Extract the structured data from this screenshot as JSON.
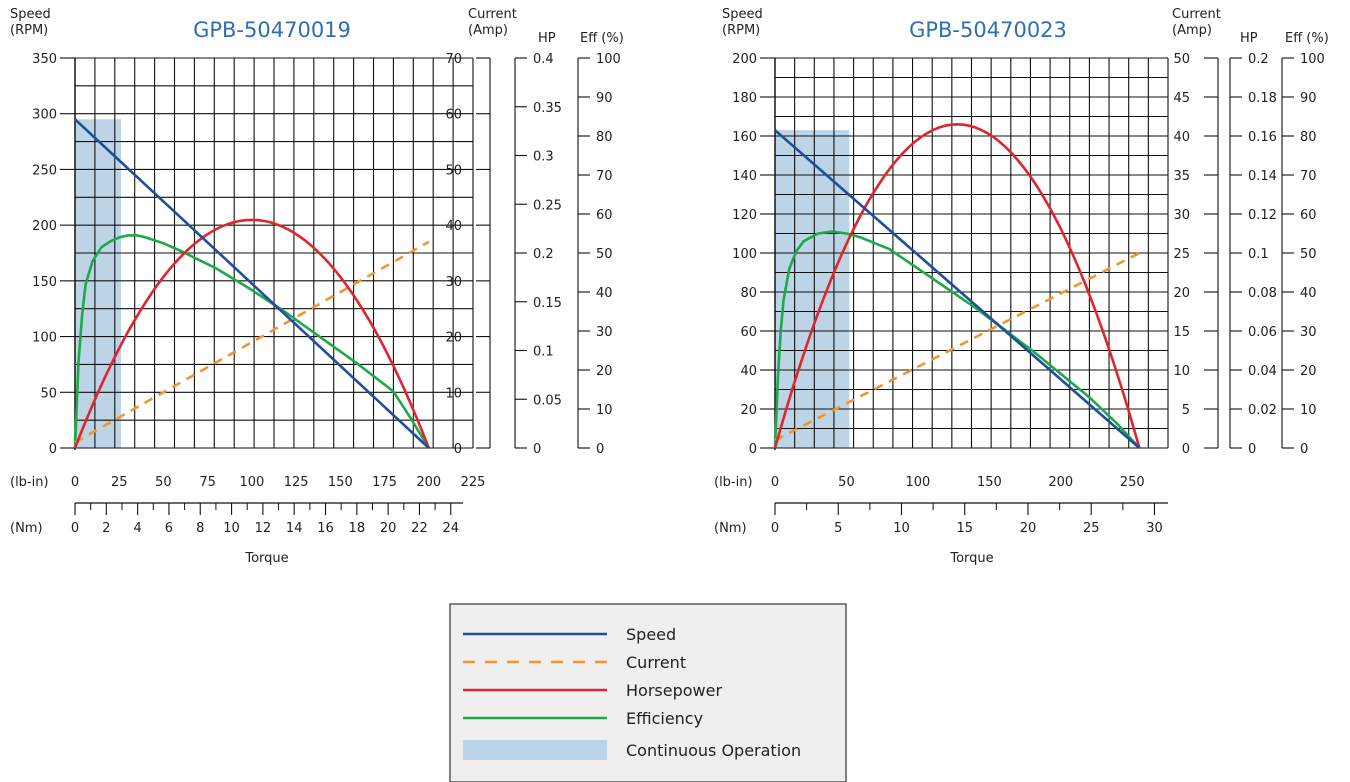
{
  "chart_data": [
    {
      "type": "line",
      "title": "GPB-50470019",
      "xlabel": "Torque",
      "x_units_primary": "(lb-in)",
      "x_units_secondary": "(Nm)",
      "y_axes": [
        {
          "label_line1": "Speed",
          "label_line2": "(RPM)",
          "range": [
            0,
            350
          ],
          "ticks": [
            "0",
            "50",
            "100",
            "150",
            "200",
            "250",
            "300",
            "350"
          ]
        },
        {
          "label_line1": "Current",
          "label_line2": "(Amp)",
          "range": [
            0,
            70
          ],
          "ticks": [
            "0",
            "10",
            "20",
            "30",
            "40",
            "50",
            "60",
            "70"
          ]
        },
        {
          "label_line1": "HP",
          "label_line2": "",
          "range": [
            0,
            0.4
          ],
          "ticks": [
            "0",
            "0.05",
            "0.1",
            "0.15",
            "0.2",
            "0.25",
            "0.3",
            "0.35",
            "0.4"
          ]
        },
        {
          "label_line1": "Eff (%)",
          "label_line2": "",
          "range": [
            0,
            100
          ],
          "ticks": [
            "0",
            "10",
            "20",
            "30",
            "40",
            "50",
            "60",
            "70",
            "80",
            "90",
            "100"
          ]
        }
      ],
      "x_lbin_ticks": [
        "0",
        "25",
        "50",
        "75",
        "100",
        "125",
        "150",
        "175",
        "200",
        "225"
      ],
      "x_lbin_range": [
        0,
        225
      ],
      "x_nm_ticks": [
        "0",
        "2",
        "4",
        "6",
        "8",
        "10",
        "12",
        "14",
        "16",
        "18",
        "20",
        "22",
        "24"
      ],
      "x_nm_max": 25.42,
      "continuous_operation_max_lbin": 26,
      "series": [
        {
          "name": "Speed",
          "x": [
            0,
            200
          ],
          "y": [
            295,
            0
          ]
        },
        {
          "name": "Current",
          "x": [
            0,
            200
          ],
          "y": [
            1,
            37
          ]
        },
        {
          "name": "Horsepower",
          "x": [
            0,
            25,
            50,
            75,
            100,
            125,
            150,
            175,
            200
          ],
          "y": [
            0,
            0.102,
            0.175,
            0.219,
            0.234,
            0.219,
            0.175,
            0.102,
            0
          ]
        },
        {
          "name": "Efficiency",
          "x": [
            0,
            2,
            4,
            6,
            10,
            15,
            20,
            25,
            30,
            35,
            40,
            50,
            60,
            80,
            100,
            120,
            140,
            160,
            180,
            190,
            200
          ],
          "y": [
            0,
            22,
            34,
            42,
            48,
            51.5,
            53,
            54,
            54.5,
            54.5,
            54,
            52.5,
            50.5,
            46,
            40.5,
            34.5,
            28,
            21.5,
            14.5,
            7.5,
            0
          ]
        }
      ]
    },
    {
      "type": "line",
      "title": "GPB-50470023",
      "xlabel": "Torque",
      "x_units_primary": "(lb-in)",
      "x_units_secondary": "(Nm)",
      "y_axes": [
        {
          "label_line1": "Speed",
          "label_line2": "(RPM)",
          "range": [
            0,
            200
          ],
          "ticks": [
            "0",
            "20",
            "40",
            "60",
            "80",
            "100",
            "120",
            "140",
            "160",
            "180",
            "200"
          ]
        },
        {
          "label_line1": "Current",
          "label_line2": "(Amp)",
          "range": [
            0,
            50
          ],
          "ticks": [
            "0",
            "5",
            "10",
            "15",
            "20",
            "25",
            "30",
            "35",
            "40",
            "45",
            "50"
          ]
        },
        {
          "label_line1": "HP",
          "label_line2": "",
          "range": [
            0,
            0.2
          ],
          "ticks": [
            "0",
            "0.02",
            "0.04",
            "0.06",
            "0.08",
            "0.1",
            "0.12",
            "0.14",
            "0.16",
            "0.18",
            "0.2"
          ]
        },
        {
          "label_line1": "Eff (%)",
          "label_line2": "",
          "range": [
            0,
            100
          ],
          "ticks": [
            "0",
            "10",
            "20",
            "30",
            "40",
            "50",
            "60",
            "70",
            "80",
            "90",
            "100"
          ]
        }
      ],
      "x_lbin_ticks": [
        "0",
        "50",
        "100",
        "150",
        "200",
        "250"
      ],
      "x_lbin_range": [
        0,
        275
      ],
      "x_nm_ticks": [
        "0",
        "5",
        "10",
        "15",
        "20",
        "25",
        "30"
      ],
      "x_nm_max": 31.07,
      "continuous_operation_max_lbin": 52,
      "series": [
        {
          "name": "Speed",
          "x": [
            0,
            255
          ],
          "y": [
            163,
            0
          ]
        },
        {
          "name": "Current",
          "x": [
            0,
            255
          ],
          "y": [
            1,
            25
          ]
        },
        {
          "name": "Horsepower",
          "x": [
            0,
            32,
            64,
            96,
            128,
            160,
            192,
            224,
            255
          ],
          "y": [
            0,
            0.0726,
            0.1245,
            0.1556,
            0.166,
            0.1556,
            0.1245,
            0.0726,
            0
          ]
        },
        {
          "name": "Efficiency",
          "x": [
            0,
            2,
            4,
            6,
            10,
            15,
            20,
            30,
            40,
            50,
            60,
            80,
            100,
            120,
            140,
            160,
            180,
            200,
            220,
            240,
            255
          ],
          "y": [
            0,
            18,
            30,
            38,
            46,
            50.5,
            53,
            55,
            55.5,
            55,
            54,
            51,
            46,
            41,
            36,
            30.5,
            25,
            19,
            13,
            6,
            0
          ]
        }
      ]
    }
  ],
  "legend": {
    "items": [
      {
        "label": "Speed",
        "color": "#1f4e9a",
        "style": "solid"
      },
      {
        "label": "Current",
        "color": "#f0962d",
        "style": "dashed"
      },
      {
        "label": "Horsepower",
        "color": "#e0262c",
        "style": "solid"
      },
      {
        "label": "Efficiency",
        "color": "#1fa84a",
        "style": "solid"
      },
      {
        "label": "Continuous Operation",
        "color": "#bcd4e6",
        "style": "fill"
      }
    ]
  },
  "colors": {
    "speed": "#1f4e9a",
    "current": "#f0962d",
    "horsepower": "#e0262c",
    "efficiency": "#1fa84a",
    "continuous": "#bcd4e6",
    "title": "#2f6fb0"
  }
}
